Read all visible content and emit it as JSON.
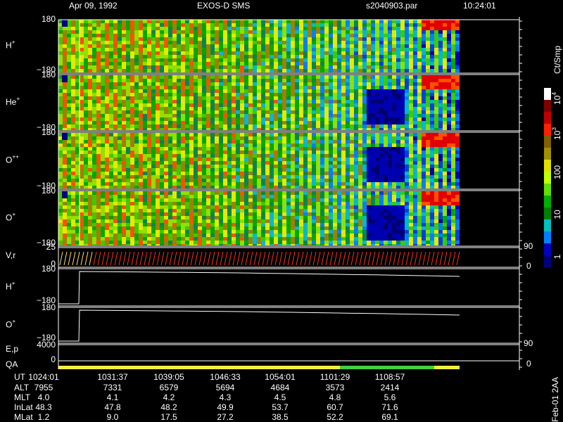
{
  "header": {
    "date": "Apr 09, 1992",
    "instrument": "EXOS-D SMS",
    "file": "s2040903.par",
    "time": "10:24:01"
  },
  "panels": [
    {
      "label": {
        "base": "H",
        "sup": "+"
      },
      "top": "180",
      "bottom": "−180"
    },
    {
      "label": {
        "base": "He",
        "sup": "+"
      },
      "top": "180",
      "bottom": "−180"
    },
    {
      "label": {
        "base": "O",
        "sup": "++"
      },
      "top": "180",
      "bottom": "−180"
    },
    {
      "label": {
        "base": "O",
        "sup": "+"
      },
      "top": "180",
      "bottom": "−180"
    }
  ],
  "velocity_panel": {
    "label": "V,r",
    "top": "25",
    "bottom": "0",
    "right_top": "90",
    "right_bottom": "0"
  },
  "pitch_panels": [
    {
      "label": {
        "base": "H",
        "sup": "+"
      },
      "top": "180",
      "bottom": "−180"
    },
    {
      "label": {
        "base": "O",
        "sup": "+"
      },
      "top": "180",
      "bottom": "−180"
    }
  ],
  "energy_panel": {
    "label": "E,p",
    "value": "4000",
    "right_top": "90",
    "right_bottom": "0"
  },
  "qa_panel": {
    "label": "QA",
    "value": "0"
  },
  "colorbar": {
    "title": "Ct/Smp",
    "labels": [
      {
        "base": "10",
        "sup": "4"
      },
      {
        "base": "10",
        "sup": "3"
      },
      "100",
      "10",
      "1"
    ]
  },
  "table": {
    "rows": [
      {
        "label": "UT",
        "values": [
          "1024:01",
          "1031:37",
          "1039:05",
          "1046:33",
          "1054:01",
          "1101:29",
          "1108:57"
        ]
      },
      {
        "label": "ALT",
        "values": [
          "7955",
          "7331",
          "6579",
          "5694",
          "4684",
          "3573",
          "2414"
        ]
      },
      {
        "label": "MLT",
        "values": [
          "4.0",
          "4.1",
          "4.2",
          "4.3",
          "4.5",
          "4.8",
          "5.6"
        ]
      },
      {
        "label": "InLat",
        "values": [
          "48.3",
          "47.8",
          "48.2",
          "49.9",
          "53.7",
          "60.7",
          "71.6"
        ]
      },
      {
        "label": "MLat",
        "values": [
          "1.2",
          "9.0",
          "17.5",
          "27.2",
          "38.5",
          "52.2",
          "69.1"
        ]
      }
    ]
  },
  "footer": "Feb-01 2AA"
}
